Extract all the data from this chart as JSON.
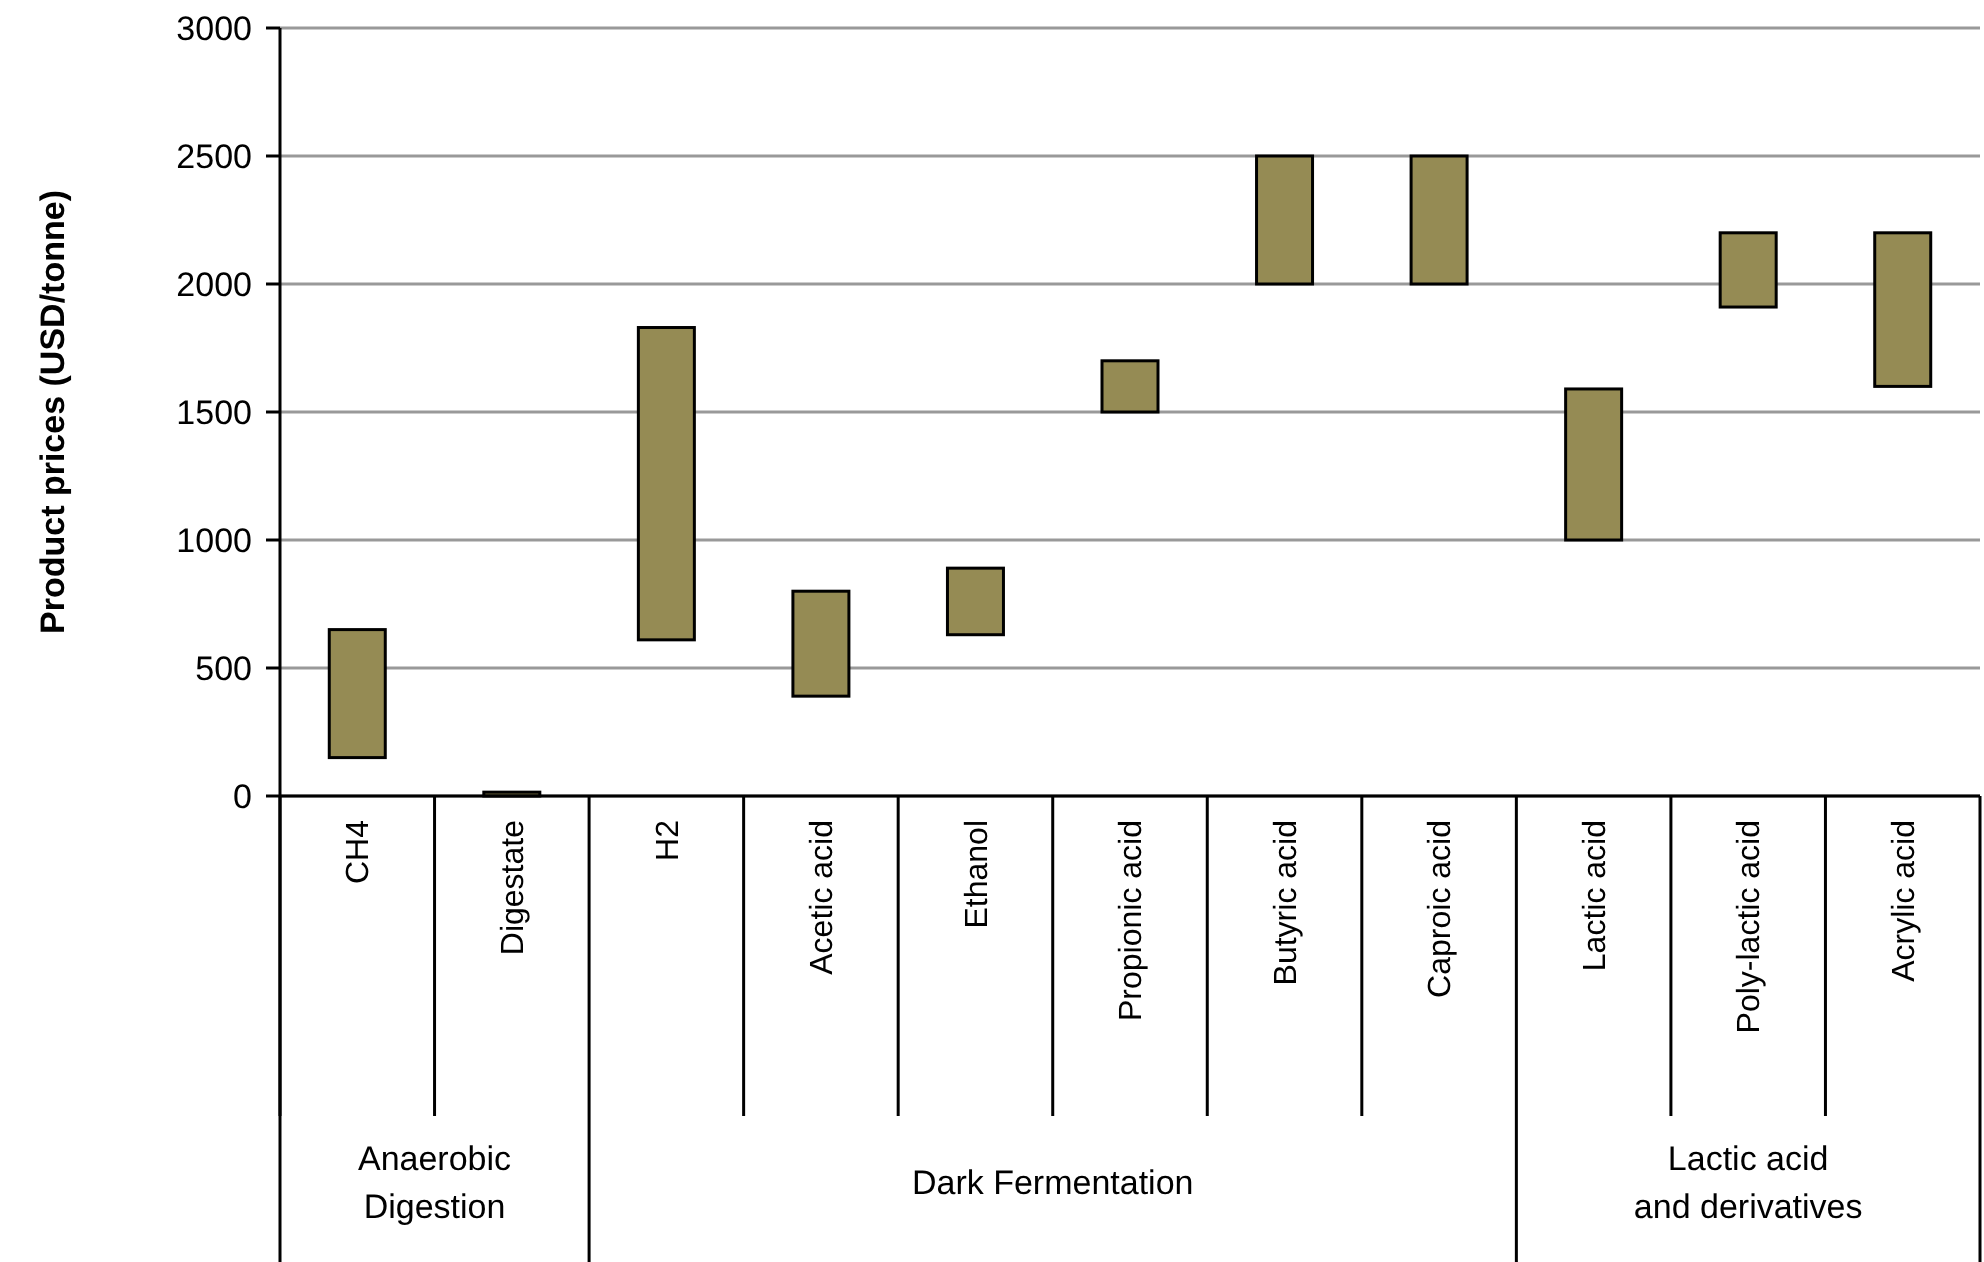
{
  "chart_data": {
    "type": "bar",
    "ylabel": "Product prices (USD/tonne)",
    "categories": [
      "CH4",
      "Digestate",
      "H2",
      "Acetic acid",
      "Ethanol",
      "Propionic acid",
      "Butyric acid",
      "Caproic acid",
      "Lactic acid",
      "Poly-lactic acid",
      "Acrylic acid"
    ],
    "base": [
      150,
      0,
      610,
      390,
      630,
      1500,
      2000,
      2000,
      1000,
      1910,
      1600
    ],
    "values": [
      500,
      15,
      1220,
      410,
      260,
      200,
      500,
      500,
      590,
      290,
      600
    ],
    "color": "#958b54",
    "ylim": [
      0,
      3000
    ],
    "yticks": [
      0,
      500,
      1000,
      1500,
      2000,
      2500,
      3000
    ],
    "grid": "y",
    "annotations": [
      "Anaerobic Digestion",
      "Dark Fermentation",
      "Lactic acid and derivatives"
    ]
  }
}
